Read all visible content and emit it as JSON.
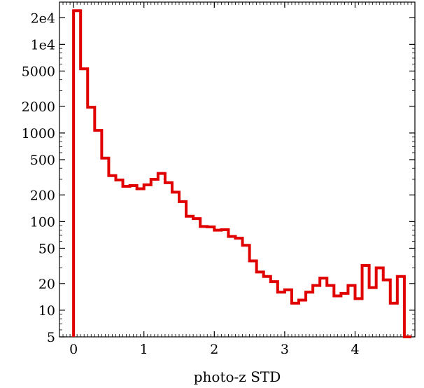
{
  "chart_data": {
    "type": "histogram",
    "xlabel": "photo-z STD",
    "yscale": "log",
    "xlim": [
      -0.2,
      4.85
    ],
    "ylim": [
      5,
      30000
    ],
    "x_ticks": [
      {
        "value": 0,
        "label": "0"
      },
      {
        "value": 1,
        "label": "1"
      },
      {
        "value": 2,
        "label": "2"
      },
      {
        "value": 3,
        "label": "3"
      },
      {
        "value": 4,
        "label": "4"
      }
    ],
    "y_ticks": [
      {
        "value": 5,
        "label": "5"
      },
      {
        "value": 10,
        "label": "10"
      },
      {
        "value": 20,
        "label": "20"
      },
      {
        "value": 50,
        "label": "50"
      },
      {
        "value": 100,
        "label": "100"
      },
      {
        "value": 200,
        "label": "200"
      },
      {
        "value": 500,
        "label": "500"
      },
      {
        "value": 1000,
        "label": "1000"
      },
      {
        "value": 2000,
        "label": "2000"
      },
      {
        "value": 5000,
        "label": "5000"
      },
      {
        "value": 10000,
        "label": "1e4"
      },
      {
        "value": 20000,
        "label": "2e4"
      }
    ],
    "bin_width": 0.1,
    "bin_start": 0.0,
    "counts": [
      24000,
      5300,
      1950,
      1070,
      520,
      330,
      295,
      250,
      255,
      235,
      260,
      300,
      350,
      275,
      215,
      168,
      115,
      108,
      88,
      87,
      80,
      81,
      68,
      65,
      54,
      36,
      27,
      24,
      21,
      16,
      17,
      12,
      13,
      16,
      19,
      23,
      19,
      14.5,
      15.5,
      19,
      13.5,
      32,
      18,
      30,
      22,
      12,
      24,
      5
    ],
    "color": "#e00000",
    "grid": false
  }
}
